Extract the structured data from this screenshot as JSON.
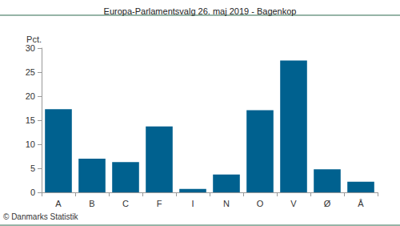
{
  "chart_data": {
    "type": "bar",
    "title": "Europa-Parlamentsvalg 26. maj 2019 - Bagenkop",
    "ylabel": "Pct.",
    "categories": [
      "A",
      "B",
      "C",
      "F",
      "I",
      "N",
      "O",
      "V",
      "Ø",
      "Å"
    ],
    "values": [
      17.3,
      7.0,
      6.3,
      13.7,
      0.7,
      3.7,
      17.1,
      27.4,
      4.8,
      2.2
    ],
    "color": "#00618f",
    "ylim": [
      0,
      30
    ],
    "yticks": [
      0,
      5,
      10,
      15,
      20,
      25,
      30
    ],
    "grid": false,
    "annotation": "© Danmarks Statistik"
  }
}
